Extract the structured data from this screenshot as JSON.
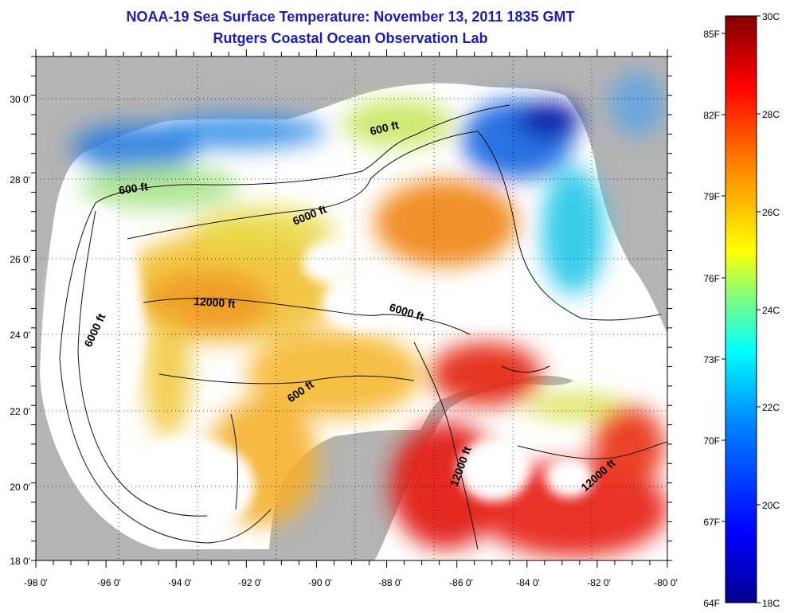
{
  "title": "NOAA-19 Sea Surface Temperature:  November 13, 2011 1835 GMT",
  "subtitle": "Rutgers Coastal Ocean Observation Lab",
  "map": {
    "lon_ticks": [
      "-98 0'",
      "-96 0'",
      "-94 0'",
      "-92 0'",
      "-90 0'",
      "-88 0'",
      "-86 0'",
      "-84 0'",
      "-82 0'",
      "-80 0'"
    ],
    "lat_ticks": [
      "30 0'",
      "28 0'",
      "26 0'",
      "24 0'",
      "22 0'",
      "20 0'",
      "18 0'"
    ],
    "contour_labels": [
      "600 ft",
      "600 ft",
      "6000 ft",
      "12000 ft",
      "6000 ft",
      "6000 ft",
      "600 ft",
      "12000 ft",
      "12000 ft"
    ],
    "colors": {
      "land": "#b4b4b4",
      "no_data": "#ffffff",
      "warm": "#e8211a",
      "cool": "#1e5ad8"
    }
  },
  "colorbar": {
    "fahrenheit": [
      "85F",
      "82F",
      "79F",
      "76F",
      "73F",
      "70F",
      "67F",
      "64F"
    ],
    "celsius": [
      "30C",
      "28C",
      "26C",
      "24C",
      "22C",
      "20C",
      "18C"
    ],
    "range_celsius": [
      18,
      30
    ],
    "stops": [
      "#00008f",
      "#0000ff",
      "#0080ff",
      "#00ffff",
      "#80ff80",
      "#ffff00",
      "#ff8000",
      "#ff0000",
      "#800000"
    ]
  }
}
